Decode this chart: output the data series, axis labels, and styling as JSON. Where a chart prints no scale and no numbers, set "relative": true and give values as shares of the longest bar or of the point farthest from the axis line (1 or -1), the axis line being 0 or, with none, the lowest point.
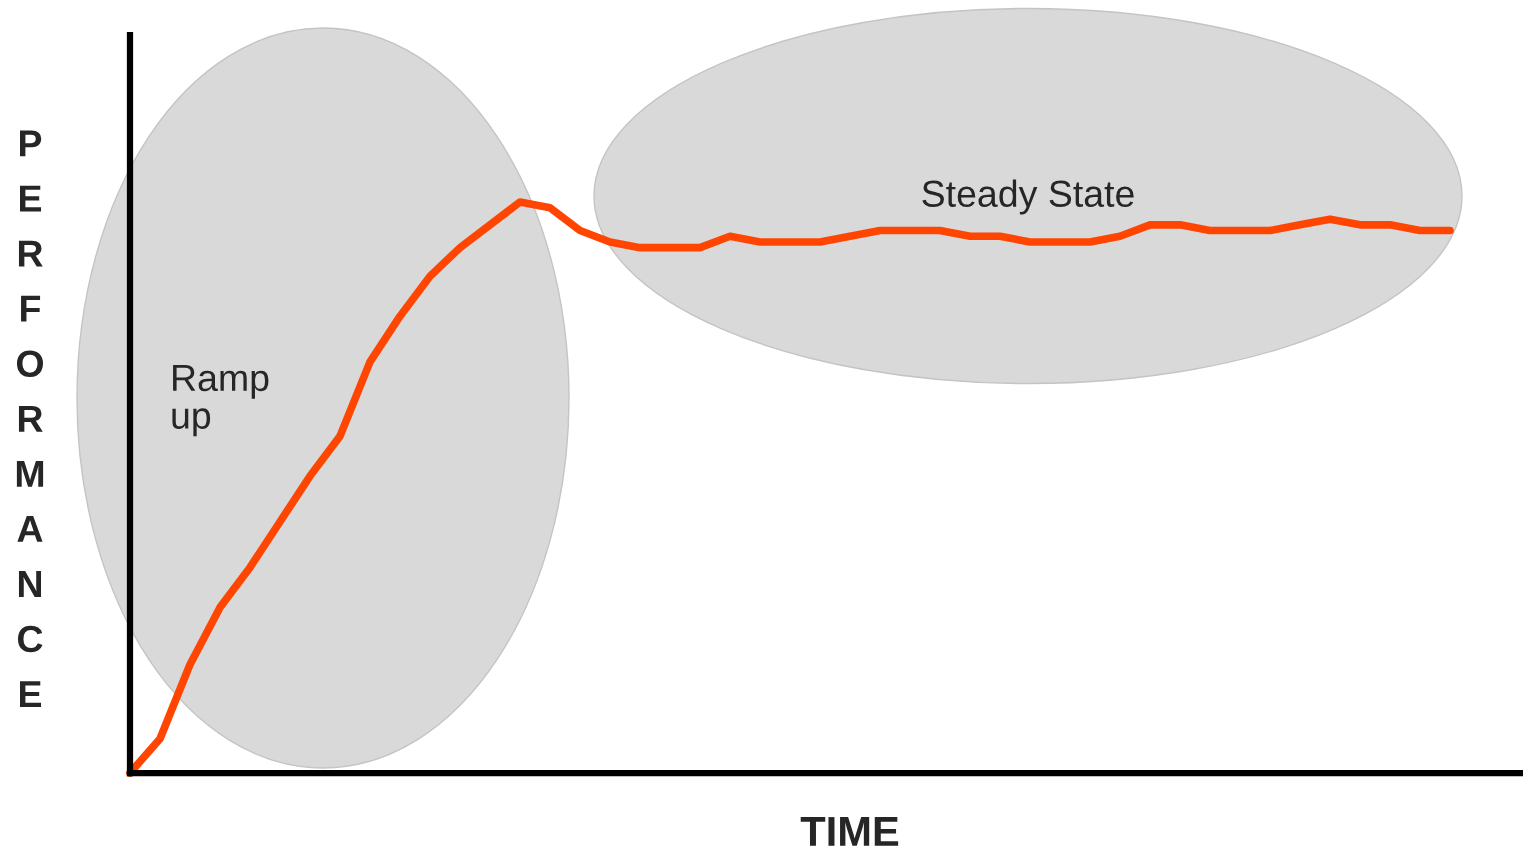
{
  "chart_data": {
    "type": "line",
    "relative": true,
    "xlabel": "TIME",
    "ylabel": "PERFORMANCE",
    "annotations": [
      "Ramp\nup",
      "Steady State"
    ],
    "categories": [
      null,
      null,
      null,
      null,
      null,
      null,
      null,
      null,
      null,
      null,
      null,
      null,
      null,
      null,
      null,
      null,
      null,
      null,
      null,
      null,
      null,
      null,
      null,
      null,
      null,
      null,
      null,
      null,
      null,
      null,
      null,
      null,
      null,
      null,
      null,
      null,
      null,
      null,
      null,
      null,
      null,
      null,
      null,
      null,
      null
    ],
    "series": [
      {
        "color": "#ff4500",
        "values": [
          0,
          0.06,
          0.19,
          0.29,
          0.36,
          0.44,
          0.52,
          0.59,
          0.72,
          0.8,
          0.87,
          0.92,
          0.96,
          1.0,
          0.99,
          0.95,
          0.93,
          0.92,
          0.92,
          0.92,
          0.94,
          0.93,
          0.93,
          0.93,
          0.94,
          0.95,
          0.95,
          0.95,
          0.94,
          0.94,
          0.93,
          0.93,
          0.93,
          0.94,
          0.96,
          0.96,
          0.95,
          0.95,
          0.95,
          0.96,
          0.97,
          0.96,
          0.96,
          0.95,
          0.95
        ]
      }
    ],
    "line_style": "solid"
  }
}
